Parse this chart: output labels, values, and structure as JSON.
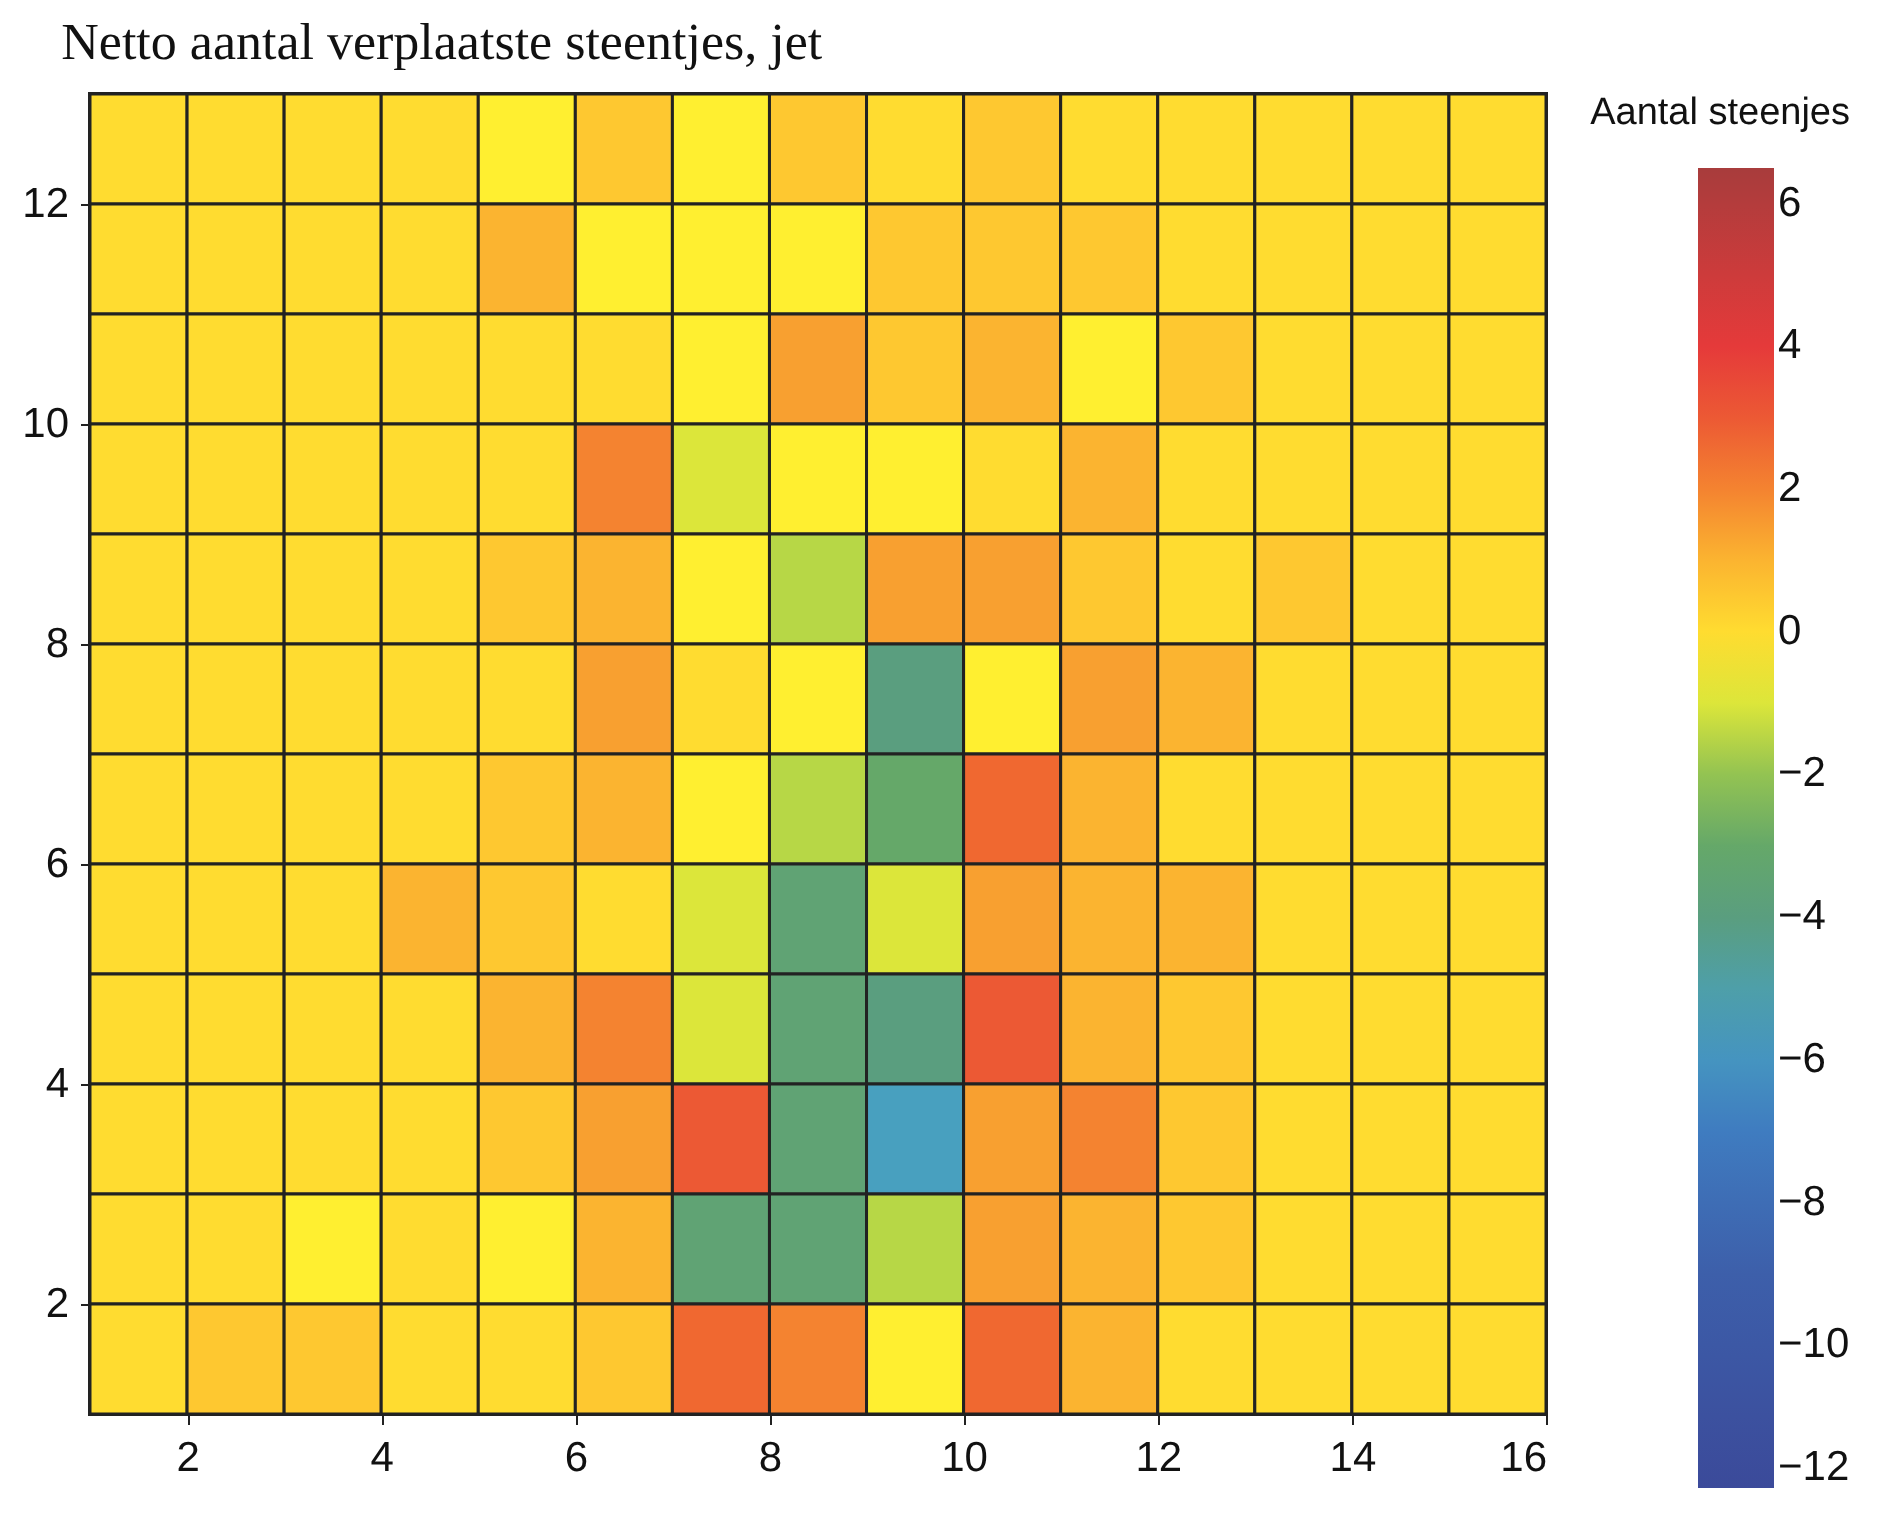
{
  "chart_data": {
    "type": "heatmap",
    "title": "Netto aantal verplaatste steentjes, jet",
    "clabel": "Aantal steenjes",
    "x": [
      1.5,
      2.5,
      3.5,
      4.5,
      5.5,
      6.5,
      7.5,
      8.5,
      9.5,
      10.5,
      11.5,
      12.5,
      13.5,
      14.5,
      15.5
    ],
    "y": [
      12.5,
      11.5,
      10.5,
      9.5,
      8.5,
      7.5,
      6.5,
      5.5,
      4.5,
      3.5,
      2.5,
      1.5
    ],
    "xlim": [
      1,
      16
    ],
    "xticks": [
      2,
      4,
      6,
      8,
      10,
      12,
      14,
      16
    ],
    "ylim": [
      1,
      13
    ],
    "yticks": [
      2,
      4,
      6,
      8,
      10,
      12
    ],
    "clim": [
      -12,
      6.5
    ],
    "cticks": [
      -12,
      -10,
      -8,
      -6,
      -4,
      -2,
      0,
      2,
      4,
      6
    ],
    "cells": [
      [
        0,
        0,
        0,
        0,
        -0.5,
        0.5,
        -0.5,
        0.5,
        0,
        0.5,
        0,
        0,
        0,
        0,
        0
      ],
      [
        0,
        0,
        0,
        0,
        1,
        -0.5,
        -0.5,
        -0.5,
        0.5,
        0.5,
        0.5,
        0,
        0,
        0,
        0
      ],
      [
        0,
        0,
        0,
        0,
        0,
        0,
        -0.5,
        1.5,
        0.5,
        1,
        -0.5,
        0.5,
        0,
        0,
        0
      ],
      [
        0,
        0,
        0,
        0,
        0,
        2,
        -1,
        -0.5,
        -0.5,
        0,
        1,
        0,
        0,
        0,
        0
      ],
      [
        0,
        0,
        0,
        0,
        0.5,
        1,
        -0.5,
        -1.5,
        1.5,
        1.5,
        0.5,
        0,
        0.5,
        0,
        0
      ],
      [
        0,
        0,
        0,
        0,
        0,
        1.5,
        0,
        -0.5,
        -4,
        -0.5,
        1.5,
        1,
        0,
        0,
        0
      ],
      [
        0,
        0,
        0,
        0,
        0.5,
        1,
        -0.5,
        -1.5,
        -3,
        2.5,
        1,
        0,
        0,
        0,
        0
      ],
      [
        0,
        0,
        0,
        1,
        0.5,
        0,
        -1,
        -3.5,
        -1,
        1.5,
        1,
        1,
        0,
        0,
        0
      ],
      [
        0,
        0,
        0,
        0,
        1,
        2,
        -1,
        -3.5,
        -4,
        3,
        1,
        0.5,
        0,
        0,
        0
      ],
      [
        0,
        0,
        0,
        0,
        0.5,
        1.5,
        3,
        -3.5,
        -5.5,
        1.5,
        2,
        0.5,
        0,
        0,
        0
      ],
      [
        0,
        0,
        -0.5,
        0,
        -0.5,
        1,
        -3.5,
        -3.5,
        -1.5,
        1.5,
        1,
        0.5,
        0,
        0,
        0
      ],
      [
        0,
        0.5,
        0.5,
        0,
        0,
        0.5,
        2.5,
        2,
        -0.5,
        2.5,
        1,
        0,
        0,
        0,
        0
      ]
    ]
  }
}
